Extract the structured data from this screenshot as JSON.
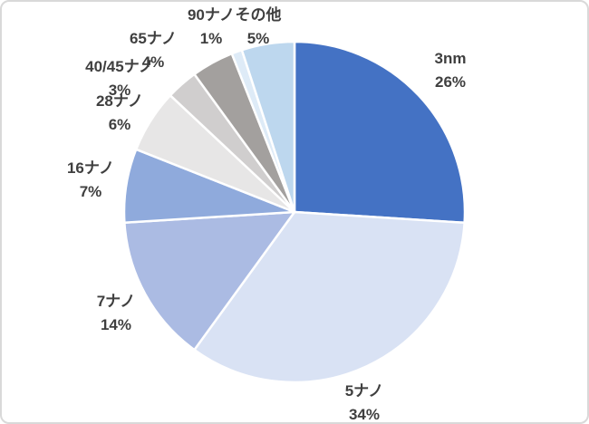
{
  "chart_data": {
    "type": "pie",
    "title": "",
    "unit": "%",
    "direction": "clockwise",
    "start_angle_deg": 0,
    "legend": "none",
    "label_style": "category-name-and-percentage-outside",
    "slices": [
      {
        "name": "3nm",
        "value": 26,
        "pct_label": "26%",
        "color": "#4472C4"
      },
      {
        "name": "5ナノ",
        "value": 34,
        "pct_label": "34%",
        "color": "#D9E2F4"
      },
      {
        "name": "7ナノ",
        "value": 14,
        "pct_label": "14%",
        "color": "#ABBBE3"
      },
      {
        "name": "16ナノ",
        "value": 7,
        "pct_label": "7%",
        "color": "#8FAADC"
      },
      {
        "name": "28ナノ",
        "value": 6,
        "pct_label": "6%",
        "color": "#E7E6E6"
      },
      {
        "name": "40/45ナノ",
        "value": 3,
        "pct_label": "3%",
        "color": "#D0CECE"
      },
      {
        "name": "65ナノ",
        "value": 4,
        "pct_label": "4%",
        "color": "#A3A09E"
      },
      {
        "name": "90ナノ",
        "value": 1,
        "pct_label": "1%",
        "color": "#DEEBF7"
      },
      {
        "name": "その他",
        "value": 5,
        "pct_label": "5%",
        "color": "#BDD7EE"
      }
    ],
    "frame_border_color": "#D9D9D9",
    "label_text_color": "#3F3F3F",
    "background_color": "#FFFFFF"
  }
}
